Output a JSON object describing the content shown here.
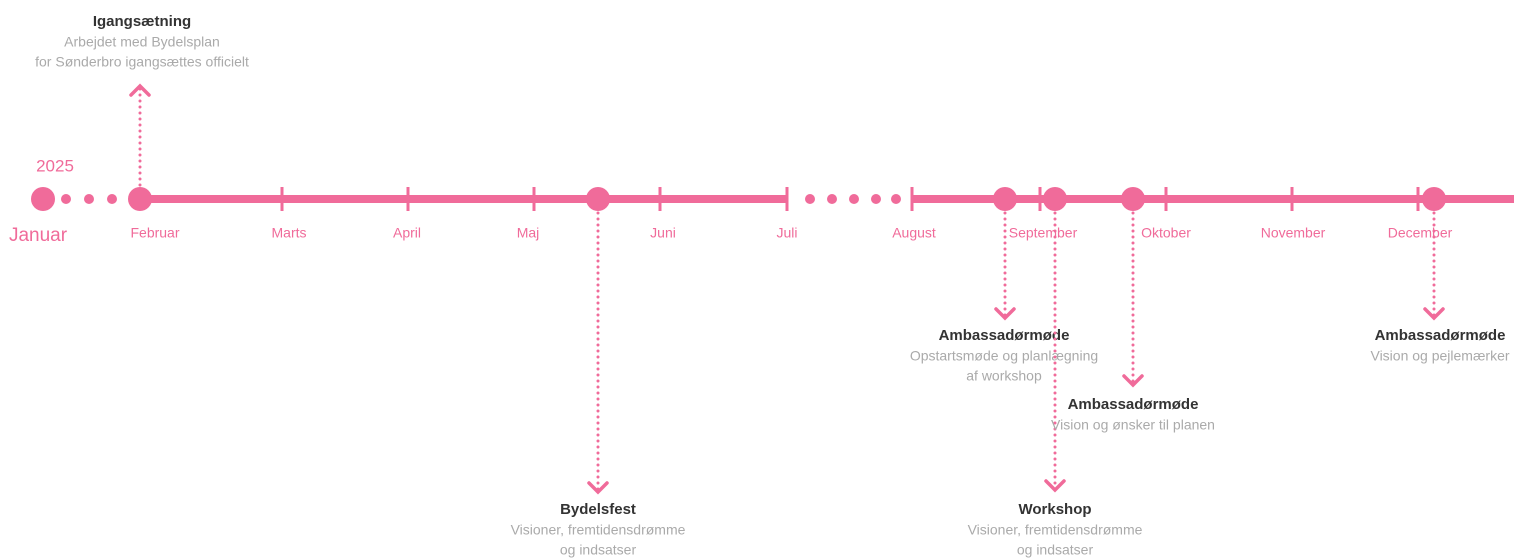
{
  "year": "2025",
  "start_month": "Januar",
  "months": [
    "Februar",
    "Marts",
    "April",
    "Maj",
    "Juni",
    "Juli",
    "August",
    "September",
    "Oktober",
    "November",
    "December"
  ],
  "events": [
    {
      "title": "Igangsætning",
      "description": [
        "Arbejdet med Bydelsplan",
        "for Sønderbro igangsættes officielt"
      ]
    },
    {
      "title": "Bydelsfest",
      "description": [
        "Visioner, fremtidensdrømme",
        "og indsatser"
      ]
    },
    {
      "title": "Ambassadørmøde",
      "description": [
        "Opstartsmøde og planlægning",
        "af workshop"
      ]
    },
    {
      "title": "Workshop",
      "description": [
        "Visioner, fremtidensdrømme",
        "og indsatser"
      ]
    },
    {
      "title": "Ambassadørmøde",
      "description": [
        "Vision og ønsker til planen"
      ]
    },
    {
      "title": "Ambassadørmøde",
      "description": [
        "Vision og pejlemærker"
      ]
    }
  ]
}
